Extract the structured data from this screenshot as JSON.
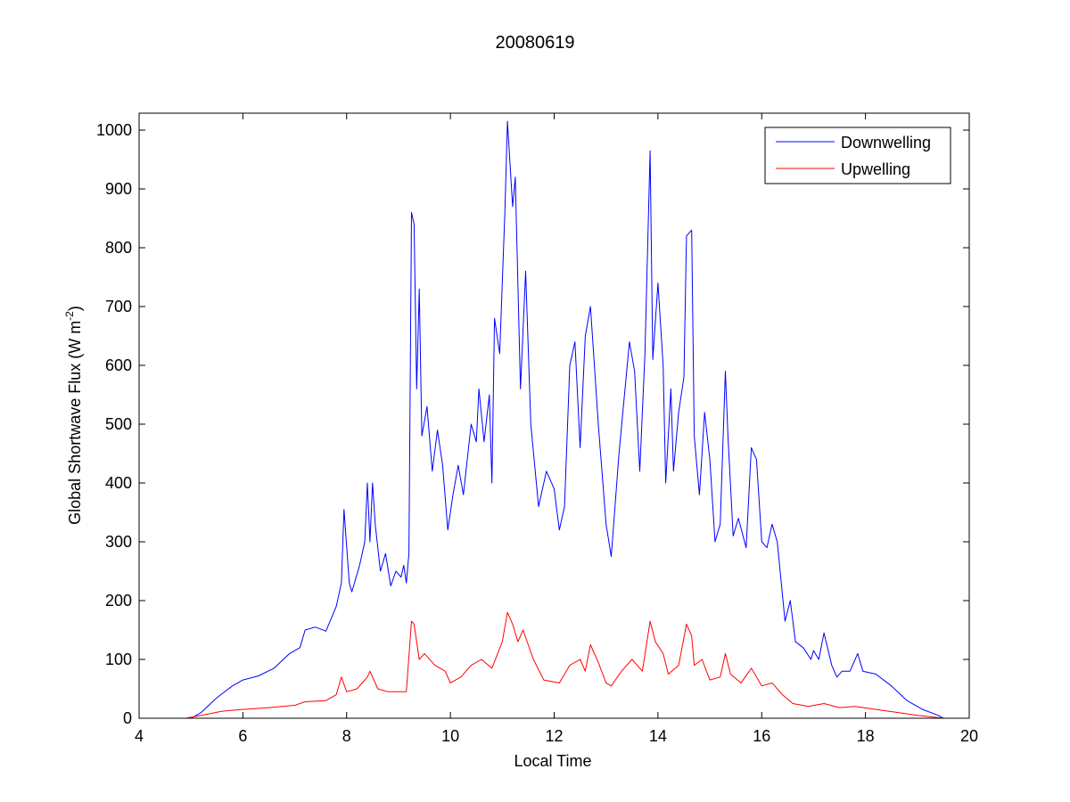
{
  "chart_data": {
    "type": "line",
    "title": "20080619",
    "xlabel": "Local Time",
    "ylabel": "Global Shortwave Flux (W m",
    "ylabel_sup": "-2",
    "ylabel_close": ")",
    "xlim": [
      4,
      20
    ],
    "ylim": [
      0,
      1000
    ],
    "xticks": [
      4,
      6,
      8,
      10,
      12,
      14,
      16,
      18,
      20
    ],
    "yticks": [
      0,
      100,
      200,
      300,
      400,
      500,
      600,
      700,
      800,
      900,
      1000
    ],
    "grid": false,
    "legend_position": "top-right",
    "series": [
      {
        "name": "Downwelling",
        "color": "#0000ff",
        "x": [
          5.0,
          5.2,
          5.5,
          5.8,
          6.0,
          6.3,
          6.6,
          6.9,
          7.1,
          7.2,
          7.4,
          7.6,
          7.8,
          7.9,
          7.95,
          8.05,
          8.1,
          8.25,
          8.35,
          8.4,
          8.45,
          8.5,
          8.55,
          8.65,
          8.75,
          8.85,
          8.95,
          9.05,
          9.1,
          9.15,
          9.2,
          9.25,
          9.3,
          9.35,
          9.4,
          9.45,
          9.55,
          9.65,
          9.75,
          9.85,
          9.95,
          10.05,
          10.15,
          10.25,
          10.4,
          10.5,
          10.55,
          10.65,
          10.75,
          10.8,
          10.85,
          10.95,
          11.0,
          11.05,
          11.1,
          11.2,
          11.25,
          11.35,
          11.45,
          11.55,
          11.7,
          11.85,
          12.0,
          12.1,
          12.2,
          12.3,
          12.4,
          12.5,
          12.6,
          12.7,
          12.85,
          13.0,
          13.1,
          13.25,
          13.45,
          13.55,
          13.65,
          13.75,
          13.85,
          13.9,
          14.0,
          14.1,
          14.15,
          14.25,
          14.3,
          14.4,
          14.5,
          14.55,
          14.65,
          14.7,
          14.8,
          14.9,
          15.0,
          15.1,
          15.2,
          15.3,
          15.35,
          15.45,
          15.55,
          15.7,
          15.8,
          15.9,
          16.0,
          16.1,
          16.2,
          16.3,
          16.45,
          16.55,
          16.65,
          16.8,
          16.95,
          17.0,
          17.1,
          17.2,
          17.35,
          17.45,
          17.55,
          17.7,
          17.85,
          17.95,
          18.2,
          18.5,
          18.8,
          19.1,
          19.4,
          19.5
        ],
        "y": [
          0,
          10,
          35,
          55,
          65,
          72,
          85,
          110,
          120,
          150,
          155,
          148,
          190,
          230,
          355,
          230,
          215,
          260,
          300,
          400,
          300,
          400,
          330,
          250,
          280,
          225,
          250,
          240,
          260,
          230,
          280,
          860,
          840,
          560,
          730,
          480,
          530,
          420,
          490,
          430,
          320,
          380,
          430,
          380,
          500,
          470,
          560,
          470,
          550,
          400,
          680,
          620,
          740,
          860,
          1015,
          870,
          920,
          560,
          760,
          500,
          360,
          420,
          390,
          320,
          360,
          600,
          640,
          460,
          650,
          700,
          500,
          330,
          275,
          450,
          640,
          590,
          420,
          620,
          965,
          610,
          740,
          600,
          400,
          560,
          420,
          520,
          580,
          820,
          830,
          480,
          380,
          520,
          440,
          300,
          330,
          590,
          480,
          310,
          340,
          290,
          460,
          440,
          300,
          290,
          330,
          300,
          165,
          200,
          130,
          120,
          100,
          115,
          100,
          145,
          90,
          70,
          80,
          80,
          110,
          80,
          75,
          55,
          30,
          15,
          5,
          0
        ]
      },
      {
        "name": "Upwelling",
        "color": "#ff0000",
        "x": [
          4.9,
          5.2,
          5.6,
          6.0,
          6.5,
          7.0,
          7.2,
          7.6,
          7.8,
          7.9,
          8.0,
          8.2,
          8.4,
          8.45,
          8.6,
          8.8,
          9.0,
          9.15,
          9.25,
          9.3,
          9.4,
          9.5,
          9.7,
          9.9,
          10.0,
          10.2,
          10.4,
          10.6,
          10.8,
          11.0,
          11.1,
          11.2,
          11.3,
          11.4,
          11.6,
          11.8,
          12.1,
          12.3,
          12.5,
          12.6,
          12.7,
          12.85,
          13.0,
          13.1,
          13.3,
          13.5,
          13.7,
          13.85,
          13.95,
          14.1,
          14.2,
          14.4,
          14.55,
          14.65,
          14.7,
          14.85,
          15.0,
          15.2,
          15.3,
          15.4,
          15.6,
          15.8,
          16.0,
          16.2,
          16.4,
          16.6,
          16.9,
          17.2,
          17.5,
          17.8,
          18.2,
          18.6,
          19.0,
          19.5
        ],
        "y": [
          0,
          5,
          12,
          15,
          18,
          22,
          28,
          30,
          40,
          70,
          45,
          50,
          70,
          80,
          50,
          45,
          45,
          45,
          165,
          160,
          100,
          110,
          90,
          80,
          60,
          70,
          90,
          100,
          85,
          130,
          180,
          160,
          130,
          150,
          100,
          65,
          60,
          90,
          100,
          80,
          125,
          95,
          60,
          55,
          80,
          100,
          80,
          165,
          130,
          110,
          75,
          90,
          160,
          140,
          90,
          100,
          65,
          70,
          110,
          75,
          60,
          85,
          55,
          60,
          40,
          25,
          20,
          25,
          18,
          20,
          15,
          10,
          5,
          0
        ]
      }
    ]
  }
}
